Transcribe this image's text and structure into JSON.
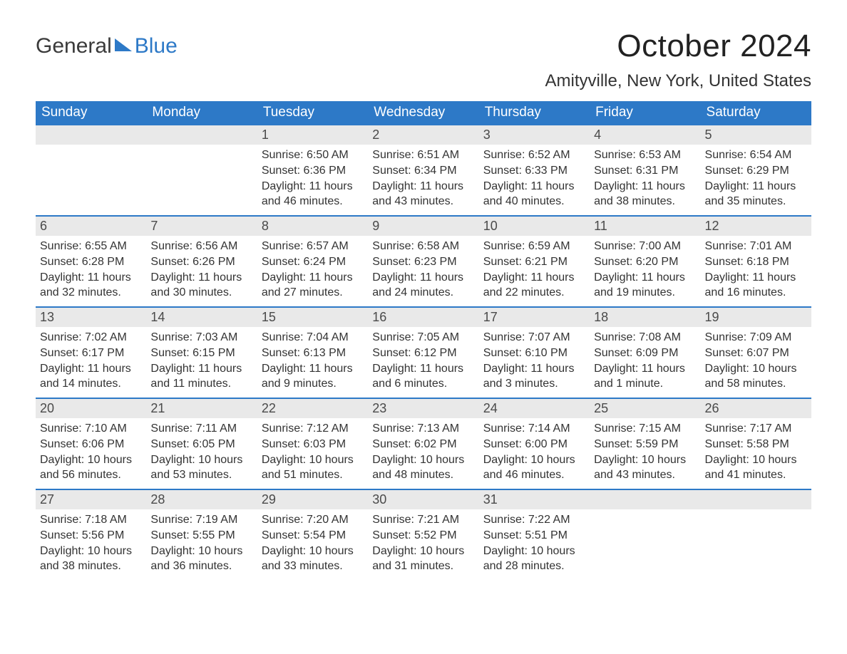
{
  "logo": {
    "text1": "General",
    "text2": "Blue",
    "sail_color": "#2d79c7",
    "text1_color": "#3a3a3a"
  },
  "title": "October 2024",
  "location": "Amityville, New York, United States",
  "colors": {
    "header_bg": "#2d79c7",
    "header_text": "#ffffff",
    "daynum_bg": "#e9e9e9",
    "daynum_text": "#4a4a4a",
    "body_text": "#333333",
    "row_border": "#2d79c7",
    "page_bg": "#ffffff"
  },
  "weekdays": [
    "Sunday",
    "Monday",
    "Tuesday",
    "Wednesday",
    "Thursday",
    "Friday",
    "Saturday"
  ],
  "weeks": [
    [
      {
        "n": "",
        "sr": "",
        "ss": "",
        "dl": ""
      },
      {
        "n": "",
        "sr": "",
        "ss": "",
        "dl": ""
      },
      {
        "n": "1",
        "sr": "Sunrise: 6:50 AM",
        "ss": "Sunset: 6:36 PM",
        "dl": "Daylight: 11 hours and 46 minutes."
      },
      {
        "n": "2",
        "sr": "Sunrise: 6:51 AM",
        "ss": "Sunset: 6:34 PM",
        "dl": "Daylight: 11 hours and 43 minutes."
      },
      {
        "n": "3",
        "sr": "Sunrise: 6:52 AM",
        "ss": "Sunset: 6:33 PM",
        "dl": "Daylight: 11 hours and 40 minutes."
      },
      {
        "n": "4",
        "sr": "Sunrise: 6:53 AM",
        "ss": "Sunset: 6:31 PM",
        "dl": "Daylight: 11 hours and 38 minutes."
      },
      {
        "n": "5",
        "sr": "Sunrise: 6:54 AM",
        "ss": "Sunset: 6:29 PM",
        "dl": "Daylight: 11 hours and 35 minutes."
      }
    ],
    [
      {
        "n": "6",
        "sr": "Sunrise: 6:55 AM",
        "ss": "Sunset: 6:28 PM",
        "dl": "Daylight: 11 hours and 32 minutes."
      },
      {
        "n": "7",
        "sr": "Sunrise: 6:56 AM",
        "ss": "Sunset: 6:26 PM",
        "dl": "Daylight: 11 hours and 30 minutes."
      },
      {
        "n": "8",
        "sr": "Sunrise: 6:57 AM",
        "ss": "Sunset: 6:24 PM",
        "dl": "Daylight: 11 hours and 27 minutes."
      },
      {
        "n": "9",
        "sr": "Sunrise: 6:58 AM",
        "ss": "Sunset: 6:23 PM",
        "dl": "Daylight: 11 hours and 24 minutes."
      },
      {
        "n": "10",
        "sr": "Sunrise: 6:59 AM",
        "ss": "Sunset: 6:21 PM",
        "dl": "Daylight: 11 hours and 22 minutes."
      },
      {
        "n": "11",
        "sr": "Sunrise: 7:00 AM",
        "ss": "Sunset: 6:20 PM",
        "dl": "Daylight: 11 hours and 19 minutes."
      },
      {
        "n": "12",
        "sr": "Sunrise: 7:01 AM",
        "ss": "Sunset: 6:18 PM",
        "dl": "Daylight: 11 hours and 16 minutes."
      }
    ],
    [
      {
        "n": "13",
        "sr": "Sunrise: 7:02 AM",
        "ss": "Sunset: 6:17 PM",
        "dl": "Daylight: 11 hours and 14 minutes."
      },
      {
        "n": "14",
        "sr": "Sunrise: 7:03 AM",
        "ss": "Sunset: 6:15 PM",
        "dl": "Daylight: 11 hours and 11 minutes."
      },
      {
        "n": "15",
        "sr": "Sunrise: 7:04 AM",
        "ss": "Sunset: 6:13 PM",
        "dl": "Daylight: 11 hours and 9 minutes."
      },
      {
        "n": "16",
        "sr": "Sunrise: 7:05 AM",
        "ss": "Sunset: 6:12 PM",
        "dl": "Daylight: 11 hours and 6 minutes."
      },
      {
        "n": "17",
        "sr": "Sunrise: 7:07 AM",
        "ss": "Sunset: 6:10 PM",
        "dl": "Daylight: 11 hours and 3 minutes."
      },
      {
        "n": "18",
        "sr": "Sunrise: 7:08 AM",
        "ss": "Sunset: 6:09 PM",
        "dl": "Daylight: 11 hours and 1 minute."
      },
      {
        "n": "19",
        "sr": "Sunrise: 7:09 AM",
        "ss": "Sunset: 6:07 PM",
        "dl": "Daylight: 10 hours and 58 minutes."
      }
    ],
    [
      {
        "n": "20",
        "sr": "Sunrise: 7:10 AM",
        "ss": "Sunset: 6:06 PM",
        "dl": "Daylight: 10 hours and 56 minutes."
      },
      {
        "n": "21",
        "sr": "Sunrise: 7:11 AM",
        "ss": "Sunset: 6:05 PM",
        "dl": "Daylight: 10 hours and 53 minutes."
      },
      {
        "n": "22",
        "sr": "Sunrise: 7:12 AM",
        "ss": "Sunset: 6:03 PM",
        "dl": "Daylight: 10 hours and 51 minutes."
      },
      {
        "n": "23",
        "sr": "Sunrise: 7:13 AM",
        "ss": "Sunset: 6:02 PM",
        "dl": "Daylight: 10 hours and 48 minutes."
      },
      {
        "n": "24",
        "sr": "Sunrise: 7:14 AM",
        "ss": "Sunset: 6:00 PM",
        "dl": "Daylight: 10 hours and 46 minutes."
      },
      {
        "n": "25",
        "sr": "Sunrise: 7:15 AM",
        "ss": "Sunset: 5:59 PM",
        "dl": "Daylight: 10 hours and 43 minutes."
      },
      {
        "n": "26",
        "sr": "Sunrise: 7:17 AM",
        "ss": "Sunset: 5:58 PM",
        "dl": "Daylight: 10 hours and 41 minutes."
      }
    ],
    [
      {
        "n": "27",
        "sr": "Sunrise: 7:18 AM",
        "ss": "Sunset: 5:56 PM",
        "dl": "Daylight: 10 hours and 38 minutes."
      },
      {
        "n": "28",
        "sr": "Sunrise: 7:19 AM",
        "ss": "Sunset: 5:55 PM",
        "dl": "Daylight: 10 hours and 36 minutes."
      },
      {
        "n": "29",
        "sr": "Sunrise: 7:20 AM",
        "ss": "Sunset: 5:54 PM",
        "dl": "Daylight: 10 hours and 33 minutes."
      },
      {
        "n": "30",
        "sr": "Sunrise: 7:21 AM",
        "ss": "Sunset: 5:52 PM",
        "dl": "Daylight: 10 hours and 31 minutes."
      },
      {
        "n": "31",
        "sr": "Sunrise: 7:22 AM",
        "ss": "Sunset: 5:51 PM",
        "dl": "Daylight: 10 hours and 28 minutes."
      },
      {
        "n": "",
        "sr": "",
        "ss": "",
        "dl": ""
      },
      {
        "n": "",
        "sr": "",
        "ss": "",
        "dl": ""
      }
    ]
  ]
}
